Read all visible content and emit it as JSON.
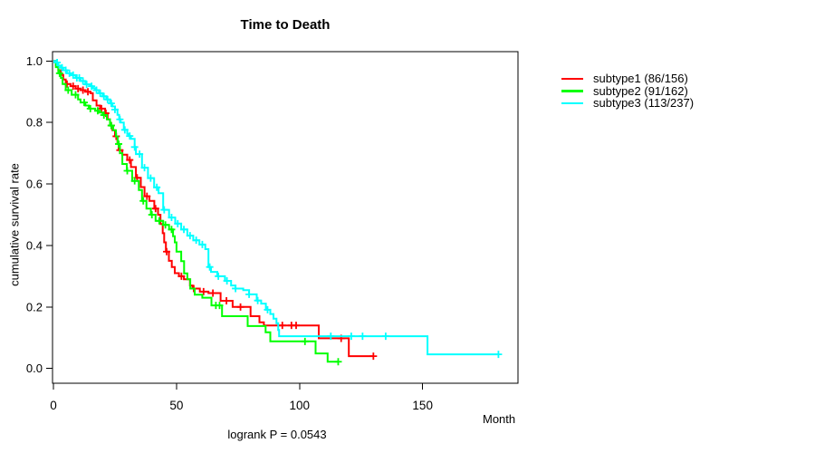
{
  "chart_data": {
    "type": "line",
    "subtype": "kaplan-meier-step-curves",
    "title": "Time to Death",
    "xlabel": "Month",
    "ylabel": "cumulative survival rate",
    "footnote": "logrank P = 0.0543",
    "xlim": [
      0,
      189
    ],
    "ylim": [
      0,
      1
    ],
    "x_ticks": [
      0,
      50,
      100,
      150
    ],
    "y_ticks": [
      0.0,
      0.2,
      0.4,
      0.6,
      0.8,
      1.0
    ],
    "y_tick_labels": [
      "0.0",
      "0.2",
      "0.4",
      "0.6",
      "0.8",
      "1.0"
    ],
    "grid": false,
    "legend_position": "top-right-outside",
    "axis_color": "#000000",
    "series": [
      {
        "name": "subtype1",
        "label": "subtype1 (86/156)",
        "color": "#FF0000",
        "end_time": 130,
        "steps": [
          [
            0,
            1.0
          ],
          [
            1,
            0.985
          ],
          [
            2,
            0.97
          ],
          [
            3,
            0.955
          ],
          [
            4,
            0.94
          ],
          [
            5,
            0.925
          ],
          [
            7,
            0.918
          ],
          [
            9,
            0.91
          ],
          [
            11,
            0.905
          ],
          [
            13,
            0.9
          ],
          [
            15,
            0.895
          ],
          [
            16,
            0.872
          ],
          [
            17.5,
            0.855
          ],
          [
            19,
            0.845
          ],
          [
            21,
            0.83
          ],
          [
            22,
            0.81
          ],
          [
            23,
            0.79
          ],
          [
            24,
            0.775
          ],
          [
            25,
            0.755
          ],
          [
            26,
            0.735
          ],
          [
            26.5,
            0.71
          ],
          [
            28,
            0.695
          ],
          [
            30,
            0.678
          ],
          [
            31.5,
            0.655
          ],
          [
            33.5,
            0.62
          ],
          [
            35.5,
            0.59
          ],
          [
            37,
            0.56
          ],
          [
            39,
            0.545
          ],
          [
            41,
            0.52
          ],
          [
            42.5,
            0.5
          ],
          [
            43.5,
            0.47
          ],
          [
            44.4,
            0.44
          ],
          [
            45,
            0.41
          ],
          [
            45.7,
            0.38
          ],
          [
            46.9,
            0.35
          ],
          [
            48.1,
            0.33
          ],
          [
            49.3,
            0.31
          ],
          [
            51,
            0.3
          ],
          [
            53,
            0.29
          ],
          [
            55.5,
            0.27
          ],
          [
            56.5,
            0.26
          ],
          [
            59.5,
            0.25
          ],
          [
            63,
            0.245
          ],
          [
            67.9,
            0.22
          ],
          [
            72.8,
            0.2
          ],
          [
            80.1,
            0.17
          ],
          [
            83.7,
            0.15
          ],
          [
            85.5,
            0.14
          ],
          [
            107.8,
            0.098
          ],
          [
            120,
            0.04
          ]
        ],
        "censor_times": [
          5.5,
          8,
          10,
          12,
          14,
          19.5,
          21.3,
          23.5,
          25.5,
          27,
          31,
          34,
          38,
          41.5,
          46,
          52,
          57,
          61,
          64.8,
          70.3,
          76,
          93,
          96.7,
          98.6,
          116.9,
          130
        ]
      },
      {
        "name": "subtype2",
        "label": "subtype2 (91/162)",
        "color": "#00FF00",
        "end_time": 115.7,
        "steps": [
          [
            0,
            1.0
          ],
          [
            1,
            0.98
          ],
          [
            2,
            0.96
          ],
          [
            3,
            0.945
          ],
          [
            3.7,
            0.925
          ],
          [
            5,
            0.905
          ],
          [
            7.4,
            0.89
          ],
          [
            10,
            0.875
          ],
          [
            11,
            0.865
          ],
          [
            13,
            0.855
          ],
          [
            14.4,
            0.845
          ],
          [
            17,
            0.838
          ],
          [
            18.4,
            0.832
          ],
          [
            20,
            0.824
          ],
          [
            21.7,
            0.81
          ],
          [
            23,
            0.79
          ],
          [
            24.3,
            0.775
          ],
          [
            25.4,
            0.755
          ],
          [
            26.1,
            0.73
          ],
          [
            27,
            0.7
          ],
          [
            28,
            0.665
          ],
          [
            29.8,
            0.643
          ],
          [
            32,
            0.61
          ],
          [
            34.7,
            0.58
          ],
          [
            36,
            0.545
          ],
          [
            37.8,
            0.52
          ],
          [
            39.6,
            0.5
          ],
          [
            41.5,
            0.48
          ],
          [
            44.6,
            0.467
          ],
          [
            47,
            0.452
          ],
          [
            48.6,
            0.43
          ],
          [
            49.3,
            0.41
          ],
          [
            50,
            0.38
          ],
          [
            51.9,
            0.349
          ],
          [
            53.1,
            0.309
          ],
          [
            54.4,
            0.29
          ],
          [
            55.6,
            0.26
          ],
          [
            57.4,
            0.24
          ],
          [
            60.5,
            0.23
          ],
          [
            64.2,
            0.205
          ],
          [
            68.5,
            0.17
          ],
          [
            78.9,
            0.138
          ],
          [
            86.2,
            0.118
          ],
          [
            88.1,
            0.088
          ],
          [
            106.5,
            0.049
          ],
          [
            111.4,
            0.022
          ]
        ],
        "censor_times": [
          2.5,
          6,
          9,
          12.5,
          15,
          18,
          20.5,
          23.5,
          26.5,
          30,
          33,
          36.5,
          40,
          43,
          45.5,
          48,
          66,
          67.5,
          102.2,
          115.7
        ]
      },
      {
        "name": "subtype3",
        "label": "subtype3 (113/237)",
        "color": "#00FFFF",
        "end_time": 180.8,
        "steps": [
          [
            0,
            1.0
          ],
          [
            1,
            0.995
          ],
          [
            2,
            0.985
          ],
          [
            3,
            0.978
          ],
          [
            4,
            0.97
          ],
          [
            5.5,
            0.96
          ],
          [
            7,
            0.954
          ],
          [
            9,
            0.945
          ],
          [
            11,
            0.935
          ],
          [
            13,
            0.924
          ],
          [
            15,
            0.918
          ],
          [
            16,
            0.912
          ],
          [
            17,
            0.905
          ],
          [
            18.5,
            0.895
          ],
          [
            20,
            0.885
          ],
          [
            21.5,
            0.875
          ],
          [
            23,
            0.862
          ],
          [
            24,
            0.852
          ],
          [
            25,
            0.842
          ],
          [
            26,
            0.825
          ],
          [
            26.7,
            0.81
          ],
          [
            27.3,
            0.8
          ],
          [
            28.6,
            0.776
          ],
          [
            30,
            0.763
          ],
          [
            30.4,
            0.756
          ],
          [
            31.5,
            0.747
          ],
          [
            33,
            0.72
          ],
          [
            33.5,
            0.697
          ],
          [
            36,
            0.653
          ],
          [
            38.4,
            0.619
          ],
          [
            40.9,
            0.589
          ],
          [
            42.7,
            0.57
          ],
          [
            44.6,
            0.516
          ],
          [
            47,
            0.491
          ],
          [
            49.5,
            0.471
          ],
          [
            51.9,
            0.452
          ],
          [
            54.4,
            0.432
          ],
          [
            56.8,
            0.417
          ],
          [
            59.3,
            0.403
          ],
          [
            61.7,
            0.388
          ],
          [
            63,
            0.33
          ],
          [
            64,
            0.314
          ],
          [
            66.6,
            0.3
          ],
          [
            69.7,
            0.285
          ],
          [
            72.2,
            0.27
          ],
          [
            74,
            0.26
          ],
          [
            77.1,
            0.255
          ],
          [
            79.5,
            0.241
          ],
          [
            82.6,
            0.221
          ],
          [
            84.4,
            0.211
          ],
          [
            86.3,
            0.191
          ],
          [
            88.1,
            0.177
          ],
          [
            89.4,
            0.162
          ],
          [
            90.6,
            0.147
          ],
          [
            91.3,
            0.125
          ],
          [
            91.7,
            0.105
          ],
          [
            152,
            0.046
          ]
        ],
        "censor_times": [
          1.5,
          3.5,
          5,
          6.5,
          8,
          9.5,
          10.5,
          12,
          13.5,
          15.5,
          17.5,
          19,
          20.5,
          22,
          23.5,
          25,
          27,
          29,
          31,
          33,
          35,
          37,
          39.5,
          42,
          45,
          48,
          50.5,
          53,
          55.5,
          58,
          60.5,
          63.5,
          67,
          70.5,
          74,
          79.5,
          83,
          87,
          112.7,
          121,
          125.6,
          135,
          180.8
        ]
      }
    ]
  }
}
